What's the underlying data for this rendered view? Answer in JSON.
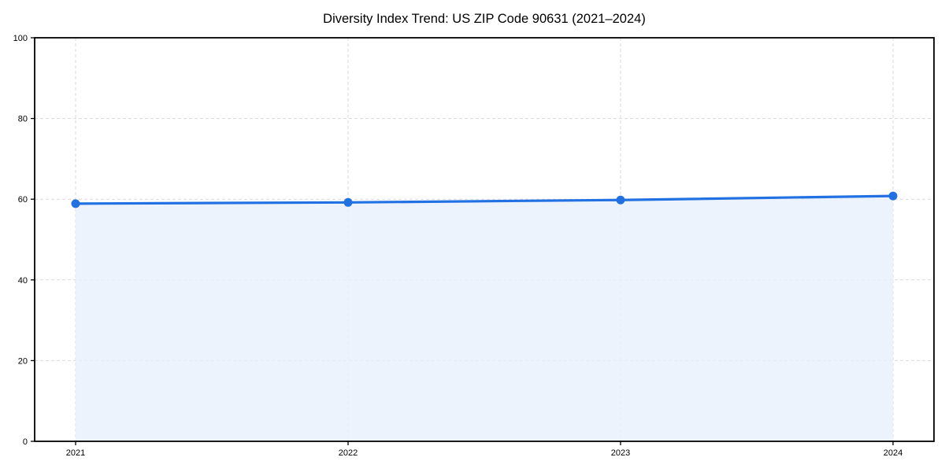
{
  "chart_data": {
    "type": "area",
    "title": "Diversity Index Trend: US ZIP Code 90631 (2021–2024)",
    "categories": [
      "2021",
      "2022",
      "2023",
      "2024"
    ],
    "series": [
      {
        "name": "Diversity Index",
        "values": [
          58.9,
          59.2,
          59.8,
          60.8
        ]
      }
    ],
    "xlabel": "",
    "ylabel": "",
    "ylim": [
      0,
      100
    ],
    "y_ticks": [
      0,
      20,
      40,
      60,
      80,
      100
    ],
    "grid": true,
    "grid_style": "dashed",
    "legend": false,
    "marker": "circle",
    "colors": {
      "line": "#2271e3",
      "marker": "#2271e3",
      "area_fill": "#e9f0fc",
      "grid": "#d9d9d9",
      "axis": "#000000",
      "text": "#000000",
      "background": "#ffffff"
    }
  }
}
